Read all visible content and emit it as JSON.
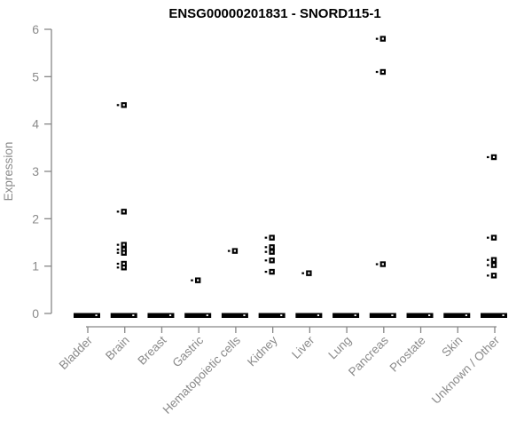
{
  "title": "ENSG00000201831 - SNORD115-1",
  "colors": {
    "marker": "#000000",
    "axis": "#878787",
    "axis_text": "#8a8a8a",
    "title_text": "#000000",
    "background": "#ffffff"
  },
  "chart_data": {
    "type": "scatter",
    "title": "ENSG00000201831 - SNORD115-1",
    "xlabel": "",
    "ylabel": "Expression",
    "ylim": [
      0,
      6
    ],
    "yticks": [
      0,
      1,
      2,
      3,
      4,
      5,
      6
    ],
    "grid": false,
    "legend_position": "none",
    "marker_style": "small black square with white center and short left dash",
    "zero_cluster_note": "every category shows a dense horizontal cluster of overlapping points at expression 0, rendered as a thick black dash",
    "categories": [
      "Bladder",
      "Brain",
      "Breast",
      "Gastric",
      "Hematopoietic cells",
      "Kidney",
      "Liver",
      "Lung",
      "Pancreas",
      "Prostate",
      "Skin",
      "Unknown / Other"
    ],
    "series": [
      {
        "category": "Bladder",
        "nonzero_values": [],
        "zero_cluster": true
      },
      {
        "category": "Brain",
        "nonzero_values": [
          4.4,
          2.15,
          1.45,
          1.35,
          1.28,
          1.05,
          0.97
        ],
        "zero_cluster": true
      },
      {
        "category": "Breast",
        "nonzero_values": [],
        "zero_cluster": true
      },
      {
        "category": "Gastric",
        "nonzero_values": [
          0.7
        ],
        "zero_cluster": true
      },
      {
        "category": "Hematopoietic cells",
        "nonzero_values": [
          1.32
        ],
        "zero_cluster": true
      },
      {
        "category": "Kidney",
        "nonzero_values": [
          1.6,
          1.4,
          1.3,
          1.12,
          0.88
        ],
        "zero_cluster": true
      },
      {
        "category": "Liver",
        "nonzero_values": [
          0.85
        ],
        "zero_cluster": true
      },
      {
        "category": "Lung",
        "nonzero_values": [],
        "zero_cluster": true
      },
      {
        "category": "Pancreas",
        "nonzero_values": [
          5.8,
          5.1,
          1.04
        ],
        "zero_cluster": true
      },
      {
        "category": "Prostate",
        "nonzero_values": [],
        "zero_cluster": true
      },
      {
        "category": "Skin",
        "nonzero_values": [],
        "zero_cluster": true
      },
      {
        "category": "Unknown / Other",
        "nonzero_values": [
          3.3,
          1.6,
          1.13,
          1.02,
          0.8
        ],
        "zero_cluster": true
      }
    ]
  }
}
